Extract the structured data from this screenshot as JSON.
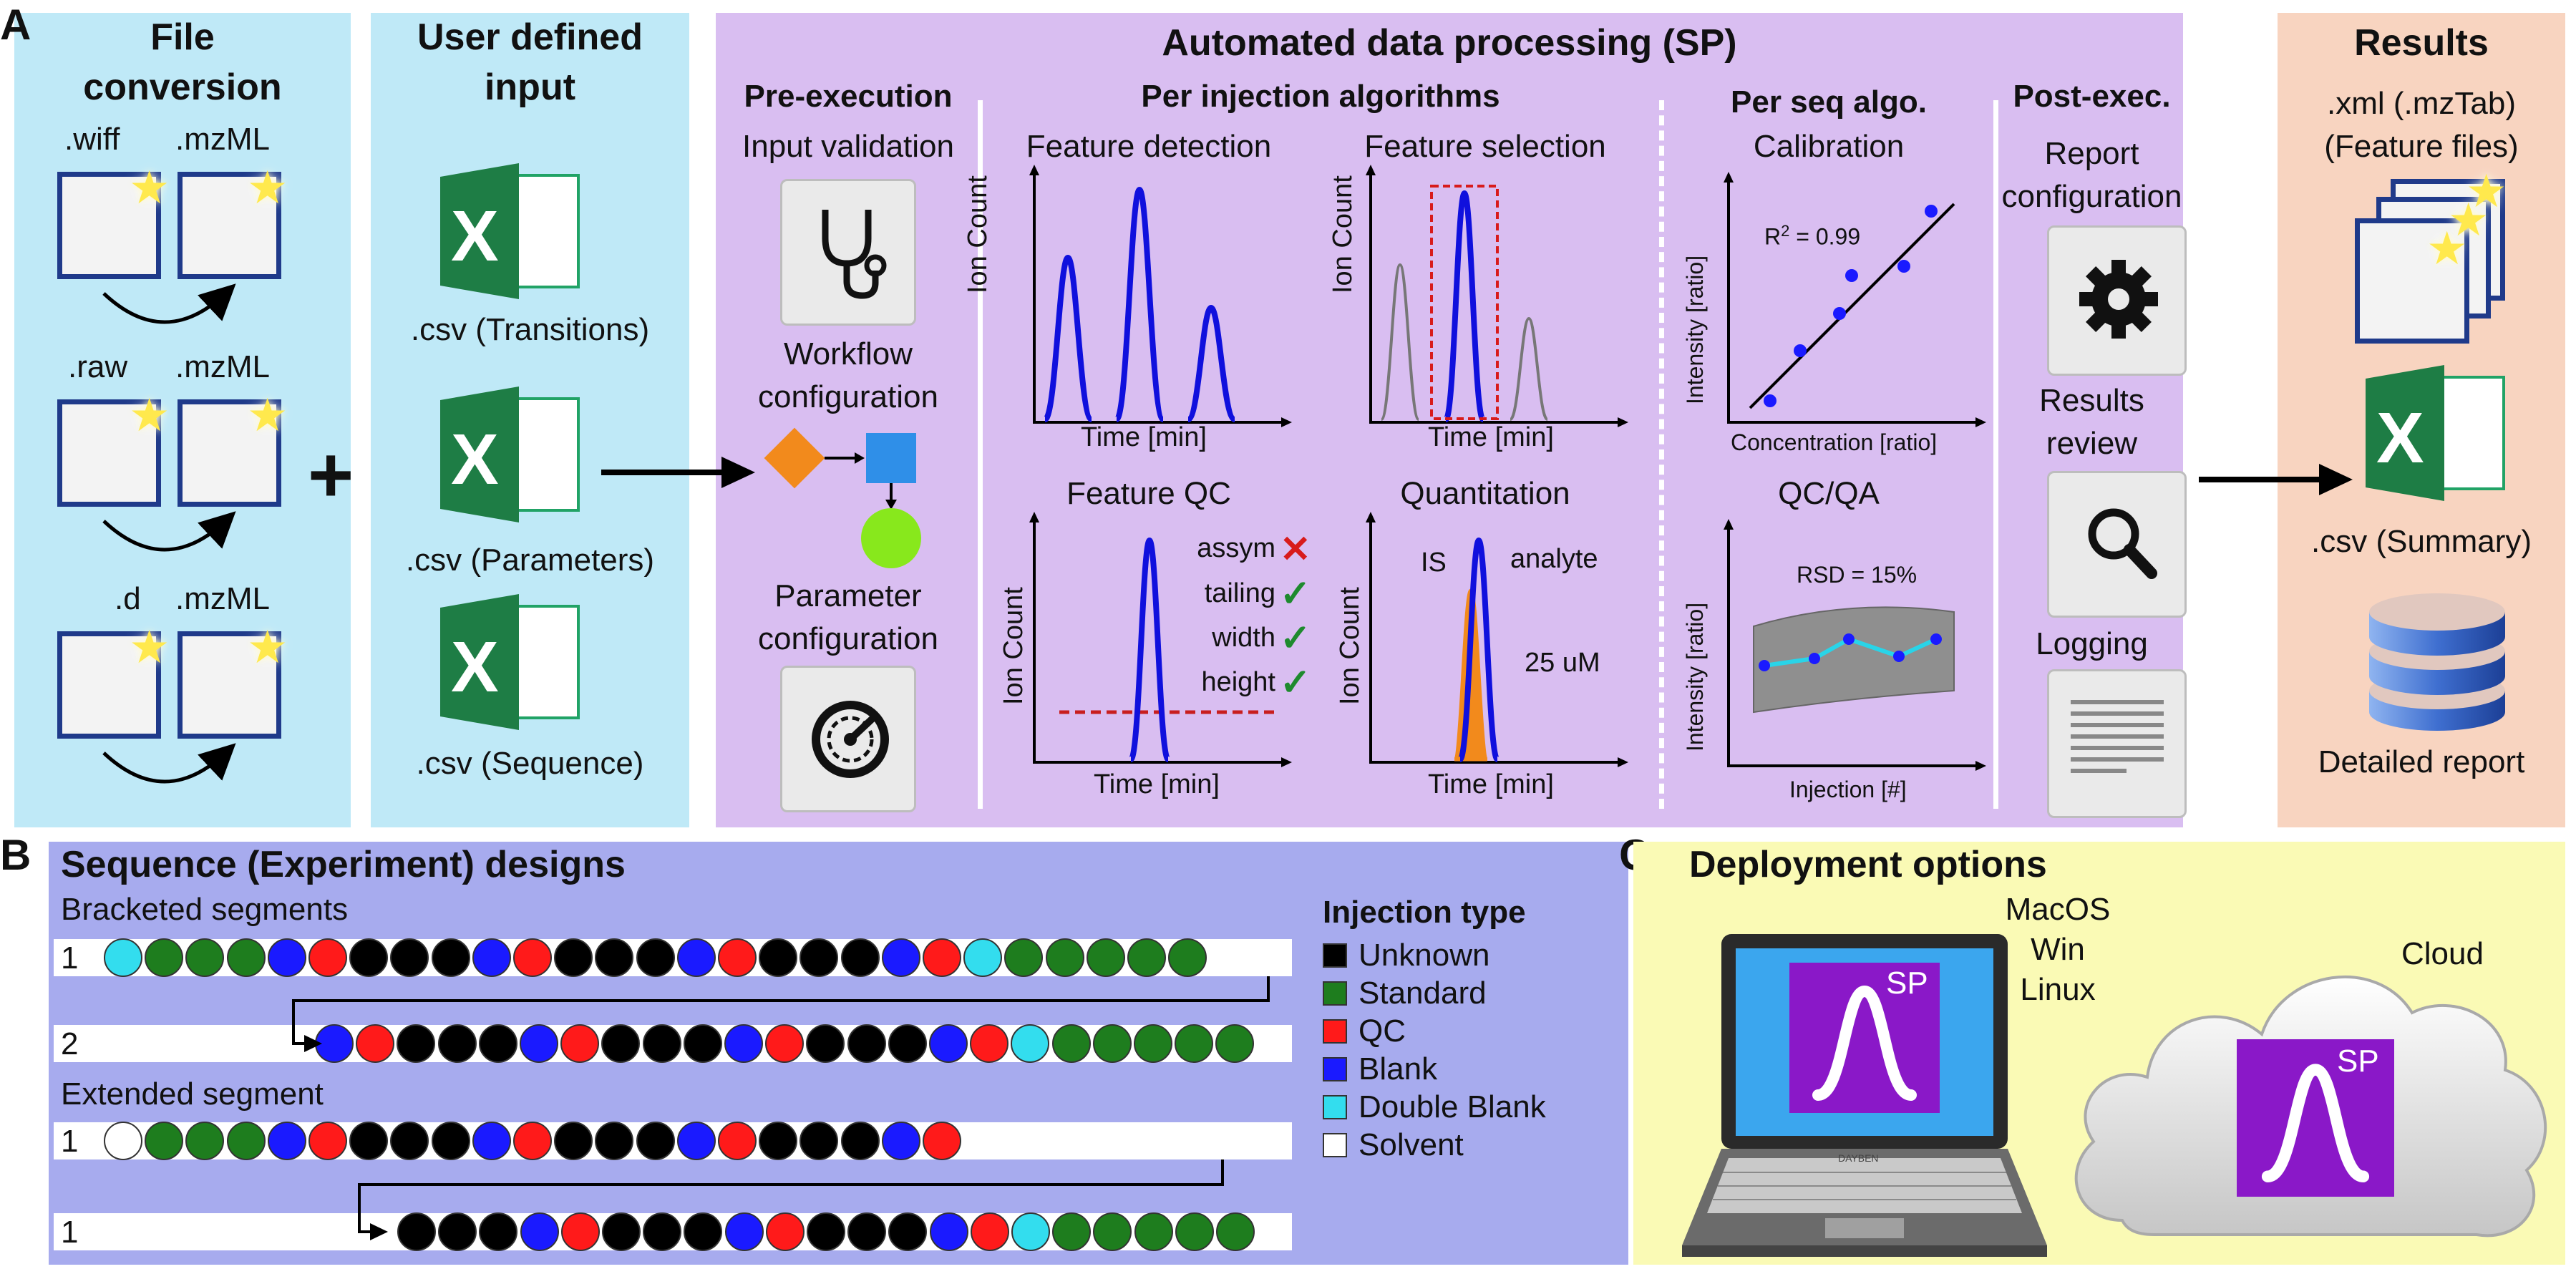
{
  "panel_letters": {
    "a": "A",
    "b": "B",
    "c": "C"
  },
  "panelA": {
    "file_conversion": {
      "title_line1": "File",
      "title_line2": "conversion",
      "rows": [
        {
          "from": ".wiff",
          "to": ".mzML"
        },
        {
          "from": ".raw",
          "to": ".mzML"
        },
        {
          "from": ".d",
          "to": ".mzML"
        }
      ]
    },
    "plus": "+",
    "user_input": {
      "title_line1": "User defined",
      "title_line2": "input",
      "files": [
        ".csv (Transitions)",
        ".csv (Parameters)",
        ".csv (Sequence)"
      ]
    },
    "automated": {
      "title": "Automated data processing (SP)",
      "pre_execution": {
        "title": "Pre-execution",
        "input_validation": "Input validation",
        "workflow_line1": "Workflow",
        "workflow_line2": "configuration",
        "parameter_line1": "Parameter",
        "parameter_line2": "configuration"
      },
      "per_injection": {
        "title": "Per injection algorithms",
        "feature_detection": "Feature detection",
        "feature_selection": "Feature selection",
        "feature_qc": "Feature QC",
        "quantitation": "Quantitation",
        "ylabel": "Ion Count",
        "xlabel": "Time [min]",
        "qc_checks": [
          "assym",
          "tailing",
          "width",
          "height"
        ],
        "qc_pass": [
          false,
          true,
          true,
          true
        ],
        "is_label": "IS",
        "analyte_label": "analyte",
        "concentration": "25 uM"
      },
      "per_seq": {
        "title": "Per seq algo.",
        "calibration": "Calibration",
        "r2_prefix": "R",
        "r2_sup": "2",
        "r2_value": " = 0.99",
        "calib_ylabel": "Intensity [ratio]",
        "calib_xlabel": "Concentration [ratio]",
        "qcqa": "QC/QA",
        "rsd": "RSD = 15%",
        "qc_ylabel": "Intensity [ratio]",
        "qc_xlabel": "Injection [#]"
      },
      "post_exec": {
        "title": "Post-exec.",
        "report_line1": "Report",
        "report_line2": "configuration",
        "results_line1": "Results",
        "results_line2": "review",
        "logging": "Logging"
      }
    },
    "results": {
      "title": "Results",
      "xml_line1": ".xml (.mzTab)",
      "xml_line2": "(Feature files)",
      "csv": ".csv (Summary)",
      "report": "Detailed report"
    }
  },
  "panelB": {
    "title": "Sequence (Experiment) designs",
    "bracketed": "Bracketed segments",
    "extended": "Extended segment",
    "rows": [
      {
        "label": "1",
        "seq": "DSSSBQUUUBQUUUBQUUUBQDSSSSS"
      },
      {
        "label": "2",
        "seq": "BQUUUBQUUUBQUUUBQDSSSSS"
      },
      {
        "label": "1",
        "seq": "OSSSBQUUUBQUUUBQUUUBQ"
      },
      {
        "label": "1",
        "seq": "UUUBQUUUBQUUUBQDSSSSS"
      }
    ],
    "legend_title": "Injection type",
    "legend": [
      {
        "key": "U",
        "label": "Unknown",
        "color": "#000000"
      },
      {
        "key": "S",
        "label": "Standard",
        "color": "#1e7d1e"
      },
      {
        "key": "Q",
        "label": "QC",
        "color": "#ff1a1a"
      },
      {
        "key": "B",
        "label": "Blank",
        "color": "#1a1aff"
      },
      {
        "key": "D",
        "label": "Double Blank",
        "color": "#33ddee"
      },
      {
        "key": "O",
        "label": "Solvent",
        "color": "#ffffff"
      }
    ]
  },
  "panelC": {
    "title": "Deployment options",
    "os_line1": "MacOS",
    "os_line2": "Win",
    "os_line3": "Linux",
    "cloud": "Cloud",
    "logo": "SP",
    "laptop_brand": "DAYBEN"
  },
  "colors": {
    "panelA_blue": "#bfe9f7",
    "panelA_purple": "#d9bef1",
    "panelA_orange": "#f8d4c0",
    "panelB": "#a7abee",
    "panelC": "#fafab5",
    "peak_blue": "#1010dd",
    "sp_purple": "#8a18c8"
  }
}
